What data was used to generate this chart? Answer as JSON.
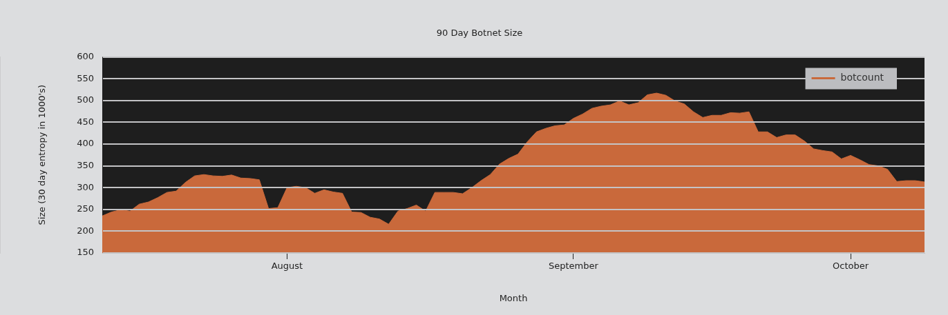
{
  "chart_data": {
    "type": "area",
    "title": "90 Day Botnet Size",
    "xlabel": "Month",
    "ylabel": "Size (30 day entropy in 1000's)",
    "ylim": [
      150,
      600
    ],
    "yticks": [
      150,
      200,
      250,
      300,
      350,
      400,
      450,
      500,
      550,
      600
    ],
    "xlim": [
      "--07-12",
      "--10-09"
    ],
    "xticks": [
      {
        "value": "--08-01",
        "label": "August"
      },
      {
        "value": "--09-01",
        "label": "September"
      },
      {
        "value": "--10-01",
        "label": "October"
      }
    ],
    "grid": "y",
    "legend": "top right",
    "marker": "none",
    "x": [
      "--07-12",
      "--07-13",
      "--07-14",
      "--07-15",
      "--07-16",
      "--07-17",
      "--07-18",
      "--07-19",
      "--07-20",
      "--07-21",
      "--07-22",
      "--07-23",
      "--07-24",
      "--07-25",
      "--07-26",
      "--07-27",
      "--07-28",
      "--07-29",
      "--07-30",
      "--07-31",
      "--08-01",
      "--08-02",
      "--08-03",
      "--08-04",
      "--08-05",
      "--08-06",
      "--08-07",
      "--08-08",
      "--08-09",
      "--08-10",
      "--08-11",
      "--08-12",
      "--08-13",
      "--08-14",
      "--08-15",
      "--08-16",
      "--08-17",
      "--08-18",
      "--08-19",
      "--08-20",
      "--08-21",
      "--08-22",
      "--08-23",
      "--08-24",
      "--08-25",
      "--08-26",
      "--08-27",
      "--08-28",
      "--08-29",
      "--08-30",
      "--08-31",
      "--09-01",
      "--09-02",
      "--09-03",
      "--09-04",
      "--09-05",
      "--09-06",
      "--09-07",
      "--09-08",
      "--09-09",
      "--09-10",
      "--09-11",
      "--09-12",
      "--09-13",
      "--09-14",
      "--09-15",
      "--09-16",
      "--09-17",
      "--09-18",
      "--09-19",
      "--09-20",
      "--09-21",
      "--09-22",
      "--09-23",
      "--09-24",
      "--09-25",
      "--09-26",
      "--09-27",
      "--09-28",
      "--09-29",
      "--09-30",
      "--10-01",
      "--10-02",
      "--10-03",
      "--10-04",
      "--10-05",
      "--10-06",
      "--10-07",
      "--10-08",
      "--10-09"
    ],
    "series": [
      {
        "name": "botcount",
        "color": "#c9693b",
        "values": [
          235,
          244,
          249,
          246,
          262,
          267,
          277,
          289,
          292,
          312,
          327,
          330,
          327,
          326,
          329,
          322,
          321,
          318,
          252,
          254,
          300,
          303,
          300,
          287,
          295,
          290,
          287,
          244,
          243,
          232,
          228,
          216,
          246,
          252,
          260,
          246,
          289,
          289,
          289,
          286,
          300,
          316,
          330,
          354,
          367,
          377,
          405,
          428,
          436,
          442,
          444,
          459,
          469,
          482,
          487,
          490,
          499,
          490,
          495,
          513,
          517,
          512,
          499,
          492,
          474,
          461,
          466,
          466,
          472,
          471,
          474,
          428,
          428,
          415,
          421,
          421,
          407,
          389,
          385,
          382,
          366,
          374,
          364,
          353,
          350,
          342,
          314,
          316,
          316,
          313
        ]
      }
    ]
  }
}
